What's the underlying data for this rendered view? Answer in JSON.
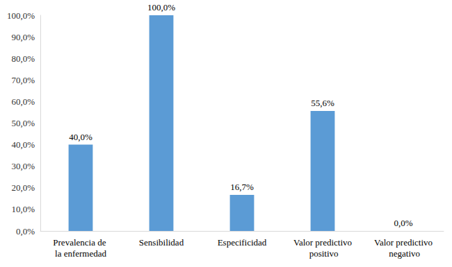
{
  "chart_data": {
    "type": "bar",
    "categories": [
      "Prevalencia de la enfermedad",
      "Sensibilidad",
      "Especificidad",
      "Valor predictivo positivo",
      "Valor predictivo negativo"
    ],
    "values": [
      40.0,
      100.0,
      16.7,
      55.6,
      0.0
    ],
    "value_labels": [
      "40,0%",
      "100,0%",
      "16,7%",
      "55,6%",
      "0,0%"
    ],
    "color": "#5b9bd5",
    "ylim": [
      0,
      100
    ],
    "yticks": [
      {
        "value": 0,
        "label": "0,0%"
      },
      {
        "value": 10,
        "label": "10,0%"
      },
      {
        "value": 20,
        "label": "20,0%"
      },
      {
        "value": 30,
        "label": "30,0%"
      },
      {
        "value": 40,
        "label": "40,0%"
      },
      {
        "value": 50,
        "label": "50,0%"
      },
      {
        "value": 60,
        "label": "60,0%"
      },
      {
        "value": 70,
        "label": "70,0%"
      },
      {
        "value": 80,
        "label": "80,0%"
      },
      {
        "value": 90,
        "label": "90,0%"
      },
      {
        "value": 100,
        "label": "100,0%"
      }
    ],
    "grid": false,
    "data_labels": true
  }
}
